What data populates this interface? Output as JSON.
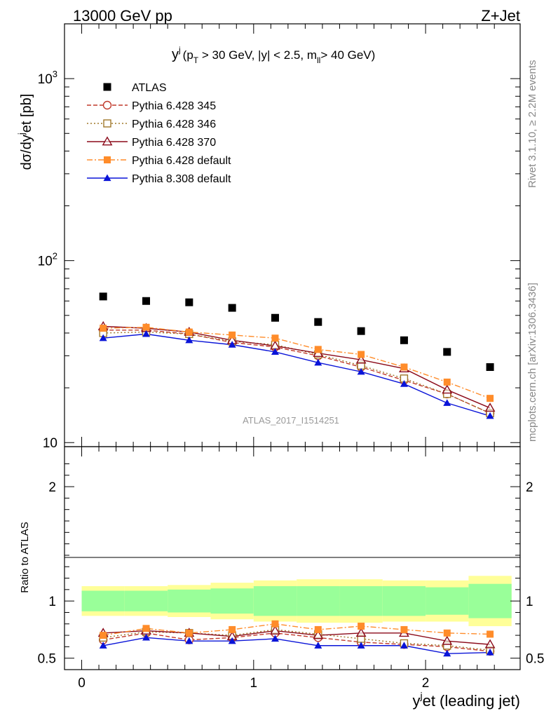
{
  "header": {
    "left": "13000 GeV pp",
    "right": "Z+Jet"
  },
  "side_labels": {
    "rivet": "Rivet 3.1.10, ≥ 2.2M events",
    "mcplots": "mcplots.cern.ch [arXiv:1306.3436]"
  },
  "colors": {
    "atlas": "#000000",
    "py345": "#c0392b",
    "py346": "#a0782a",
    "py370": "#8b0a1a",
    "py6def": "#ff8c2a",
    "py8def": "#0a14d8",
    "band_inner": "#99ff99",
    "band_outer": "#ffff99"
  },
  "chart_data": [
    {
      "type": "scatter",
      "panel": "main",
      "title": "y^j (p_T > 30 GeV, |y| < 2.5, m_ll > 40 GeV)",
      "title_parts": {
        "y": "y",
        "j": "j",
        "pre": "(p",
        "T": "T",
        "mid": " > 30 GeV, |y| < 2.5, m",
        "ll": "ll",
        "post": "> 40 GeV)"
      },
      "ylabel": "dσ/dy^jet [pb]",
      "ylabel_parts": {
        "a": "dσ/dy",
        "j": "j",
        "b": "et [pb]"
      },
      "yscale": "log",
      "ylim": [
        9.5,
        2000
      ],
      "xlim": [
        -0.1,
        2.55
      ],
      "y_ticks": [
        "10",
        "10",
        "10"
      ],
      "y_tick_exps": [
        "",
        "2",
        "3"
      ],
      "watermark": "ATLAS_2017_I1514251",
      "legend_position": "top-left",
      "x": [
        0.125,
        0.375,
        0.625,
        0.875,
        1.125,
        1.375,
        1.625,
        1.875,
        2.125,
        2.375
      ],
      "series": [
        {
          "name": "ATLAS",
          "key": "atlas",
          "values": [
            63.5,
            60.0,
            59.0,
            55.0,
            48.5,
            46.0,
            41.0,
            36.5,
            31.5,
            26.0
          ]
        },
        {
          "name": "Pythia 6.428 345",
          "key": "py345",
          "values": [
            41.5,
            41.5,
            39.5,
            35.5,
            33.5,
            30.0,
            26.0,
            22.0,
            18.5,
            14.5
          ]
        },
        {
          "name": "Pythia 6.428 346",
          "key": "py346",
          "values": [
            40.0,
            40.5,
            39.5,
            36.0,
            34.5,
            30.5,
            26.5,
            22.5,
            18.5,
            14.5
          ]
        },
        {
          "name": "Pythia 6.428 370",
          "key": "py370",
          "values": [
            43.5,
            42.5,
            40.5,
            36.5,
            34.0,
            31.0,
            28.5,
            25.5,
            19.5,
            15.5
          ]
        },
        {
          "name": "Pythia 6.428 default",
          "key": "py6def",
          "values": [
            42.5,
            43.0,
            40.5,
            39.0,
            37.5,
            32.5,
            30.5,
            26.0,
            21.5,
            17.5
          ]
        },
        {
          "name": "Pythia 8.308 default",
          "key": "py8def",
          "values": [
            37.5,
            39.5,
            36.5,
            34.5,
            31.5,
            27.5,
            24.5,
            21.0,
            16.5,
            14.0
          ]
        }
      ]
    },
    {
      "type": "scatter",
      "panel": "ratio",
      "ylabel": "Ratio to ATLAS",
      "xlabel": "y^jet (leading jet)",
      "xlabel_parts": {
        "y": "y",
        "j": "j",
        "rest": "et (leading jet)"
      },
      "ylim": [
        0.4,
        2.35
      ],
      "xlim": [
        -0.1,
        2.55
      ],
      "x_ticks": [
        "0",
        "1",
        "2"
      ],
      "y_ticks": [
        "0.5",
        "1",
        "2"
      ],
      "x": [
        0.125,
        0.375,
        0.625,
        0.875,
        1.125,
        1.375,
        1.625,
        1.875,
        2.125,
        2.375
      ],
      "band_inner": [
        0.09,
        0.09,
        0.1,
        0.11,
        0.13,
        0.13,
        0.13,
        0.13,
        0.12,
        0.15
      ],
      "band_outer": [
        0.13,
        0.13,
        0.14,
        0.16,
        0.18,
        0.19,
        0.19,
        0.18,
        0.18,
        0.22
      ],
      "series": [
        {
          "name": "Pythia 6.428 345",
          "key": "py345",
          "values": [
            0.66,
            0.72,
            0.66,
            0.68,
            0.72,
            0.68,
            0.64,
            0.62,
            0.6,
            0.56
          ]
        },
        {
          "name": "Pythia 6.428 346",
          "key": "py346",
          "values": [
            0.68,
            0.73,
            0.72,
            0.7,
            0.75,
            0.71,
            0.67,
            0.63,
            0.61,
            0.57
          ]
        },
        {
          "name": "Pythia 6.428 370",
          "key": "py370",
          "values": [
            0.72,
            0.74,
            0.72,
            0.69,
            0.74,
            0.7,
            0.72,
            0.72,
            0.65,
            0.62
          ]
        },
        {
          "name": "Pythia 6.428 default",
          "key": "py6def",
          "values": [
            0.7,
            0.76,
            0.72,
            0.75,
            0.8,
            0.75,
            0.78,
            0.75,
            0.72,
            0.71
          ]
        },
        {
          "name": "Pythia 8.308 default",
          "key": "py8def",
          "values": [
            0.61,
            0.68,
            0.65,
            0.65,
            0.67,
            0.61,
            0.61,
            0.61,
            0.54,
            0.55
          ]
        }
      ]
    }
  ]
}
